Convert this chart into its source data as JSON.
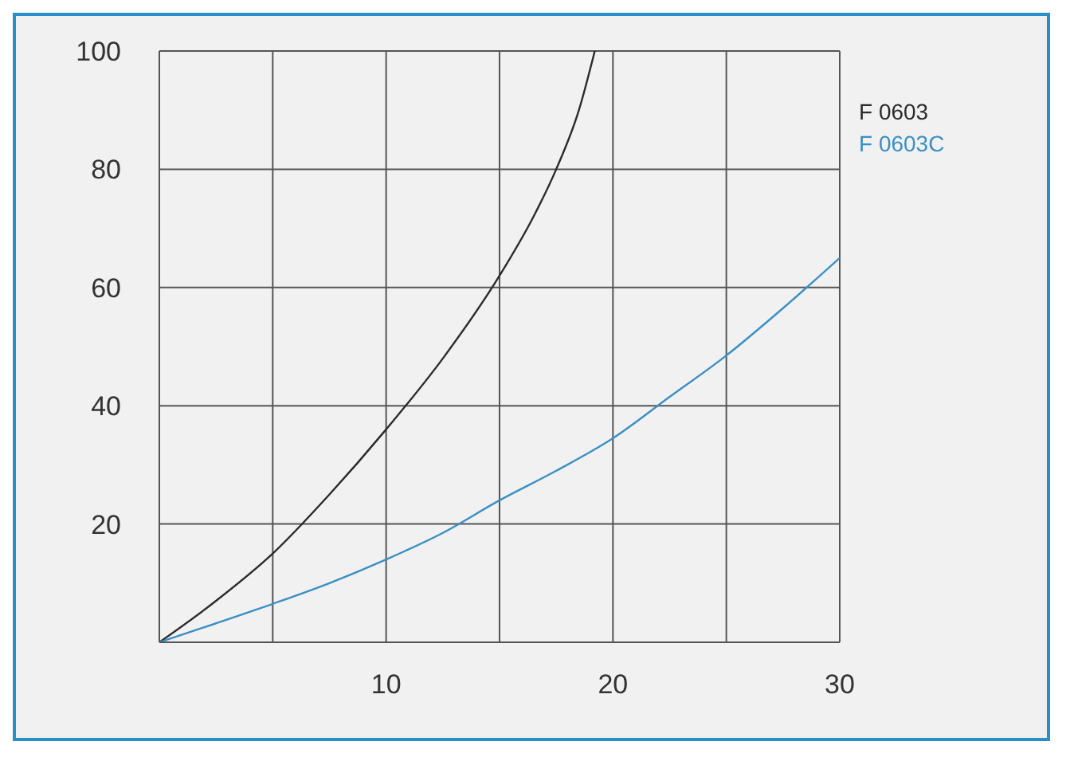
{
  "chart_data": {
    "type": "line",
    "xlim": [
      0,
      30
    ],
    "ylim": [
      0,
      100
    ],
    "xticks": [
      {
        "value": 0,
        "label": null
      },
      {
        "value": 5,
        "label": null
      },
      10,
      {
        "value": 15,
        "label": null
      },
      20,
      {
        "value": 25,
        "label": null
      },
      30
    ],
    "yticks": [
      {
        "value": 0,
        "label": null
      },
      20,
      40,
      60,
      80,
      100
    ],
    "grid": true,
    "legend": "top right",
    "marker": "none",
    "line_style": "solid",
    "series": [
      {
        "name": "F 0603",
        "color": "#2b2b2b",
        "x": [
          0,
          2.5,
          5,
          7.5,
          10,
          12.5,
          15,
          16.5,
          17.5,
          18.5,
          19.2
        ],
        "values": [
          0,
          7,
          15,
          25,
          36,
          48,
          62,
          72,
          80,
          90,
          100
        ]
      },
      {
        "name": "F 0603C",
        "color": "#3a8fc4",
        "x": [
          0,
          2.5,
          5,
          7.5,
          10,
          12.5,
          15,
          17.5,
          20,
          22.5,
          25,
          27.5,
          30
        ],
        "values": [
          0,
          3.2,
          6.5,
          10,
          14,
          18.5,
          24,
          29,
          34.5,
          41.5,
          48.5,
          56.5,
          65
        ]
      }
    ]
  }
}
